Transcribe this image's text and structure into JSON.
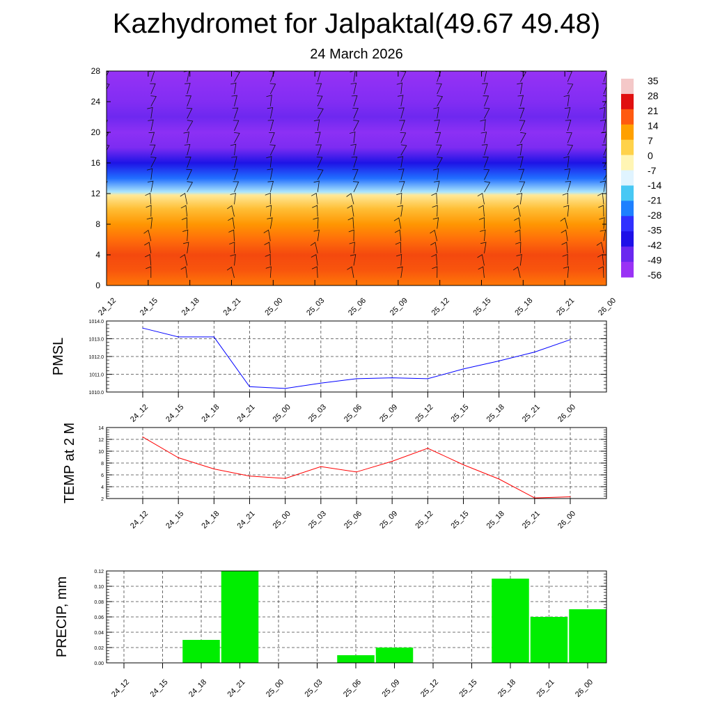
{
  "title": "Kazhydromet for Jalpaktal(49.67 49.48)",
  "subtitle": "24 March 2026",
  "chart_data": [
    {
      "type": "heatmap",
      "name": "vertical-cross-section",
      "description_variable": "temperature with wind barbs",
      "x_tick_labels": [
        "24_12",
        "24_15",
        "24_18",
        "24_21",
        "25_00",
        "25_03",
        "25_06",
        "25_09",
        "25_12",
        "25_15",
        "25_18",
        "25_21",
        "26_00"
      ],
      "ylim": [
        0,
        28
      ],
      "y_ticks": [
        0,
        4,
        8,
        12,
        16,
        20,
        24,
        28
      ],
      "colorbar": {
        "labels": [
          "35",
          "28",
          "21",
          "14",
          "7",
          "0",
          "-7",
          "-14",
          "-21",
          "-28",
          "-35",
          "-42",
          "-49",
          "-56"
        ],
        "colors": [
          "#f4c8c8",
          "#e01010",
          "#ff5a10",
          "#ffa000",
          "#ffd24a",
          "#fff5b4",
          "#e0f4ff",
          "#48c8f4",
          "#1e80ff",
          "#3030ff",
          "#1e10e8",
          "#6a28f0",
          "#9a32f5"
        ]
      },
      "layers": [
        {
          "z": 0,
          "temp": 6
        },
        {
          "z": 2,
          "temp": 9
        },
        {
          "z": 4,
          "temp": 10
        },
        {
          "z": 6,
          "temp": 7
        },
        {
          "z": 8,
          "temp": 3
        },
        {
          "z": 10,
          "temp": -2
        },
        {
          "z": 11.8,
          "temp": -8
        },
        {
          "z": 12.2,
          "temp": -16
        },
        {
          "z": 14,
          "temp": -30
        },
        {
          "z": 16,
          "temp": -44
        },
        {
          "z": 18,
          "temp": -55
        },
        {
          "z": 20,
          "temp": -58
        },
        {
          "z": 22,
          "temp": -52
        },
        {
          "z": 24,
          "temp": -56
        },
        {
          "z": 28,
          "temp": -60
        }
      ]
    },
    {
      "type": "line",
      "name": "pmsl",
      "ylabel": "PMSL",
      "x_tick_labels": [
        "24_12",
        "24_15",
        "24_18",
        "24_21",
        "25_00",
        "25_03",
        "25_06",
        "25_09",
        "25_12",
        "25_15",
        "25_18",
        "25_21",
        "26_00"
      ],
      "ylim": [
        1010.0,
        1014.0
      ],
      "y_ticks": [
        "1010.0",
        "1011.0",
        "1012.0",
        "1013.0",
        "1014.0"
      ],
      "series": [
        {
          "name": "PMSL",
          "color": "#0000ff",
          "values": [
            1013.6,
            1013.1,
            1013.1,
            1010.3,
            1010.2,
            1010.5,
            1010.75,
            1010.8,
            1010.75,
            1011.3,
            1011.75,
            1012.25,
            1012.95
          ]
        }
      ]
    },
    {
      "type": "line",
      "name": "temp-2m",
      "ylabel": "TEMP at 2 M",
      "x_tick_labels": [
        "24_12",
        "24_15",
        "24_18",
        "24_21",
        "25_00",
        "25_03",
        "25_06",
        "25_09",
        "25_12",
        "25_15",
        "25_18",
        "25_21",
        "26_00"
      ],
      "ylim": [
        2,
        14
      ],
      "y_ticks": [
        "2",
        "4",
        "6",
        "8",
        "10",
        "12",
        "14"
      ],
      "series": [
        {
          "name": "TEMP at 2 M",
          "color": "#ff0000",
          "values": [
            12.4,
            8.9,
            7.0,
            5.8,
            5.4,
            7.4,
            6.5,
            8.3,
            10.5,
            7.7,
            5.3,
            2.1,
            2.3
          ]
        }
      ]
    },
    {
      "type": "bar",
      "name": "precip",
      "ylabel": "PRECIP, mm",
      "categories": [
        "24_12",
        "24_15",
        "24_18",
        "24_21",
        "25_00",
        "25_03",
        "25_06",
        "25_09",
        "25_12",
        "25_15",
        "25_18",
        "25_21",
        "26_00"
      ],
      "ylim": [
        0,
        0.12
      ],
      "y_ticks": [
        "0.00",
        "0.02",
        "0.04",
        "0.06",
        "0.08",
        "0.10",
        "0.12"
      ],
      "bar_color": "#00ee00",
      "values": [
        0,
        0,
        0.03,
        0.12,
        0,
        0,
        0.01,
        0.02,
        0,
        0,
        0.11,
        0.06,
        0.07
      ]
    }
  ]
}
